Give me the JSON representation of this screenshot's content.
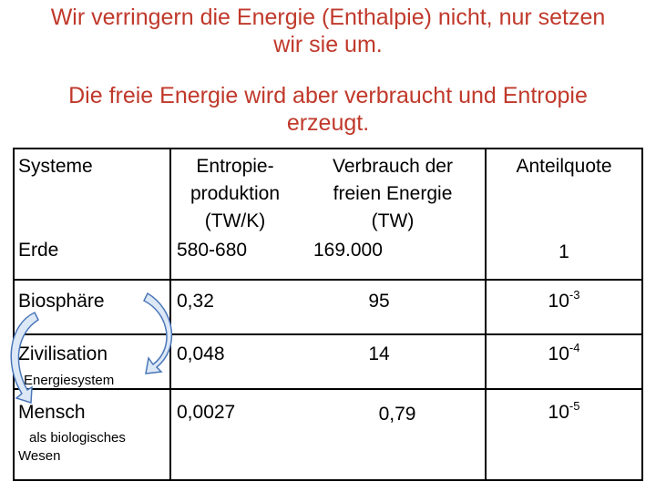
{
  "slide": {
    "title_line1": "Wir verringern die Energie (Enthalpie) nicht, nur setzen",
    "title_line2": "wir sie um.",
    "subtitle_line1": "Die freie Energie wird aber verbraucht und Entropie",
    "subtitle_line2": "erzeugt."
  },
  "table": {
    "headers": {
      "col1": "Systeme",
      "col2": [
        "Entropie-",
        "produktion",
        "(TW/K)"
      ],
      "col3": [
        "Verbrauch der",
        "freien Energie",
        "(TW)"
      ],
      "col4": "Anteilquote"
    },
    "rows": [
      {
        "system": "Erde",
        "entropy": "580-680",
        "energy": "169.000",
        "quota": "1"
      },
      {
        "system": "Biosphäre",
        "entropy": "0,32",
        "energy": "95",
        "quota_base": "10",
        "quota_exp": "-3"
      },
      {
        "system": "Zivilisation",
        "note": "Energiesystem",
        "entropy": "0,048",
        "energy": "14",
        "quota_base": "10",
        "quota_exp": "-4"
      },
      {
        "system": "Mensch",
        "note_line1": "als biologisches",
        "note_line2": "Wesen",
        "entropy": "0,0027",
        "energy": "0,79",
        "quota_base": "10",
        "quota_exp": "-5"
      }
    ]
  },
  "colors": {
    "title": "#c0392b",
    "arrow_fill": "#dde8f7",
    "arrow_stroke": "#4a76b8"
  },
  "icons": [
    "cycle-arrow-left-icon",
    "cycle-arrow-right-icon"
  ]
}
